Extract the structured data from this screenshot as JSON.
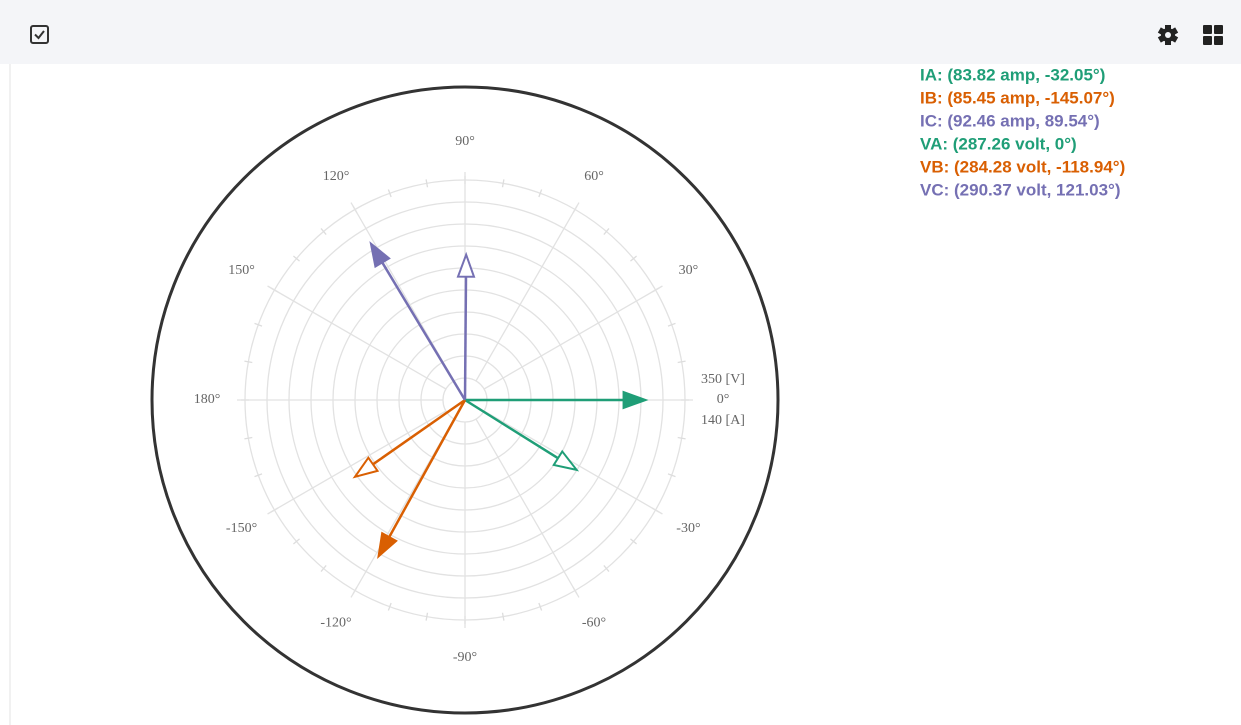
{
  "chart_data": {
    "type": "phasor",
    "angle_ticks": [
      {
        "value": 0,
        "label": "0°"
      },
      {
        "value": 30,
        "label": "30°"
      },
      {
        "value": 60,
        "label": "60°"
      },
      {
        "value": 90,
        "label": "90°"
      },
      {
        "value": 120,
        "label": "120°"
      },
      {
        "value": 150,
        "label": "150°"
      },
      {
        "value": 180,
        "label": "180°"
      },
      {
        "value": -150,
        "label": "-150°"
      },
      {
        "value": -120,
        "label": "-120°"
      },
      {
        "value": -90,
        "label": "-90°"
      },
      {
        "value": -60,
        "label": "-60°"
      },
      {
        "value": -30,
        "label": "-30°"
      }
    ],
    "scales": {
      "volt": {
        "max": 350,
        "label": "350 [V]"
      },
      "amp": {
        "max": 140,
        "label": "140 [A]"
      }
    },
    "rings": 10,
    "series": [
      {
        "label": "IA: (83.82 amp, -32.05°)",
        "magnitude": 83.82,
        "angle": -32.05,
        "scale": "amp",
        "color": "#1f9e77"
      },
      {
        "label": "IB: (85.45 amp, -145.07°)",
        "magnitude": 85.45,
        "angle": -145.07,
        "scale": "amp",
        "color": "#d95f02"
      },
      {
        "label": "IC: (92.46 amp, 89.54°)",
        "magnitude": 92.46,
        "angle": 89.54,
        "scale": "amp",
        "color": "#7570b3"
      },
      {
        "label": "VA: (287.26 volt, 0°)",
        "magnitude": 287.26,
        "angle": 0,
        "scale": "volt",
        "color": "#1f9e77"
      },
      {
        "label": "VB: (284.28 volt, -118.94°)",
        "magnitude": 284.28,
        "angle": -118.94,
        "scale": "volt",
        "color": "#d95f02"
      },
      {
        "label": "VC: (290.37 volt, 121.03°)",
        "magnitude": 290.37,
        "angle": 121.03,
        "scale": "volt",
        "color": "#7570b3"
      }
    ]
  }
}
